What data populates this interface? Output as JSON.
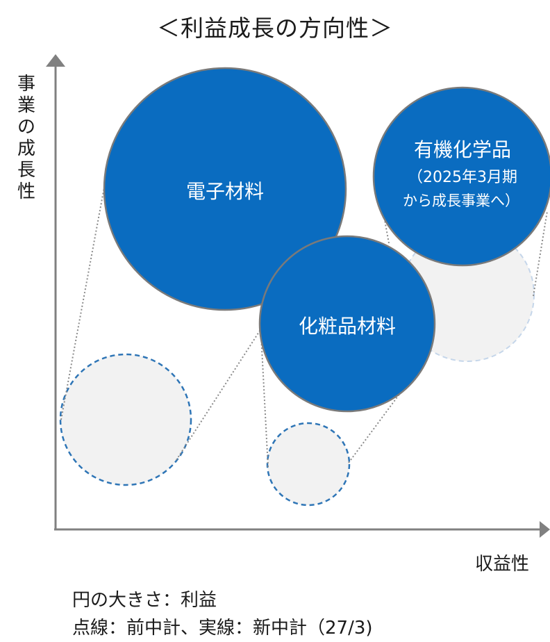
{
  "title": "＜利益成長の方向性＞",
  "y_axis_label": "事業の成長性",
  "x_axis_label": "収益性",
  "circles": {
    "denshi": {
      "label": "電子材料"
    },
    "keshohin": {
      "label": "化粧品材料"
    },
    "yuki": {
      "label_line1": "有機化学品",
      "label_line2": "（2025年3月期",
      "label_line3": "から成長事業へ）"
    }
  },
  "notes": {
    "size_meaning": "円の大きさ：利益",
    "line_meaning": "点線：前中計、実線：新中計（27/3)"
  },
  "colors": {
    "current_fill": "#0a6cc0",
    "current_stroke": "#7a7a7a",
    "previous_fill": "#f2f2f2",
    "previous_stroke": "#2e75b6",
    "axis": "#808080"
  }
}
